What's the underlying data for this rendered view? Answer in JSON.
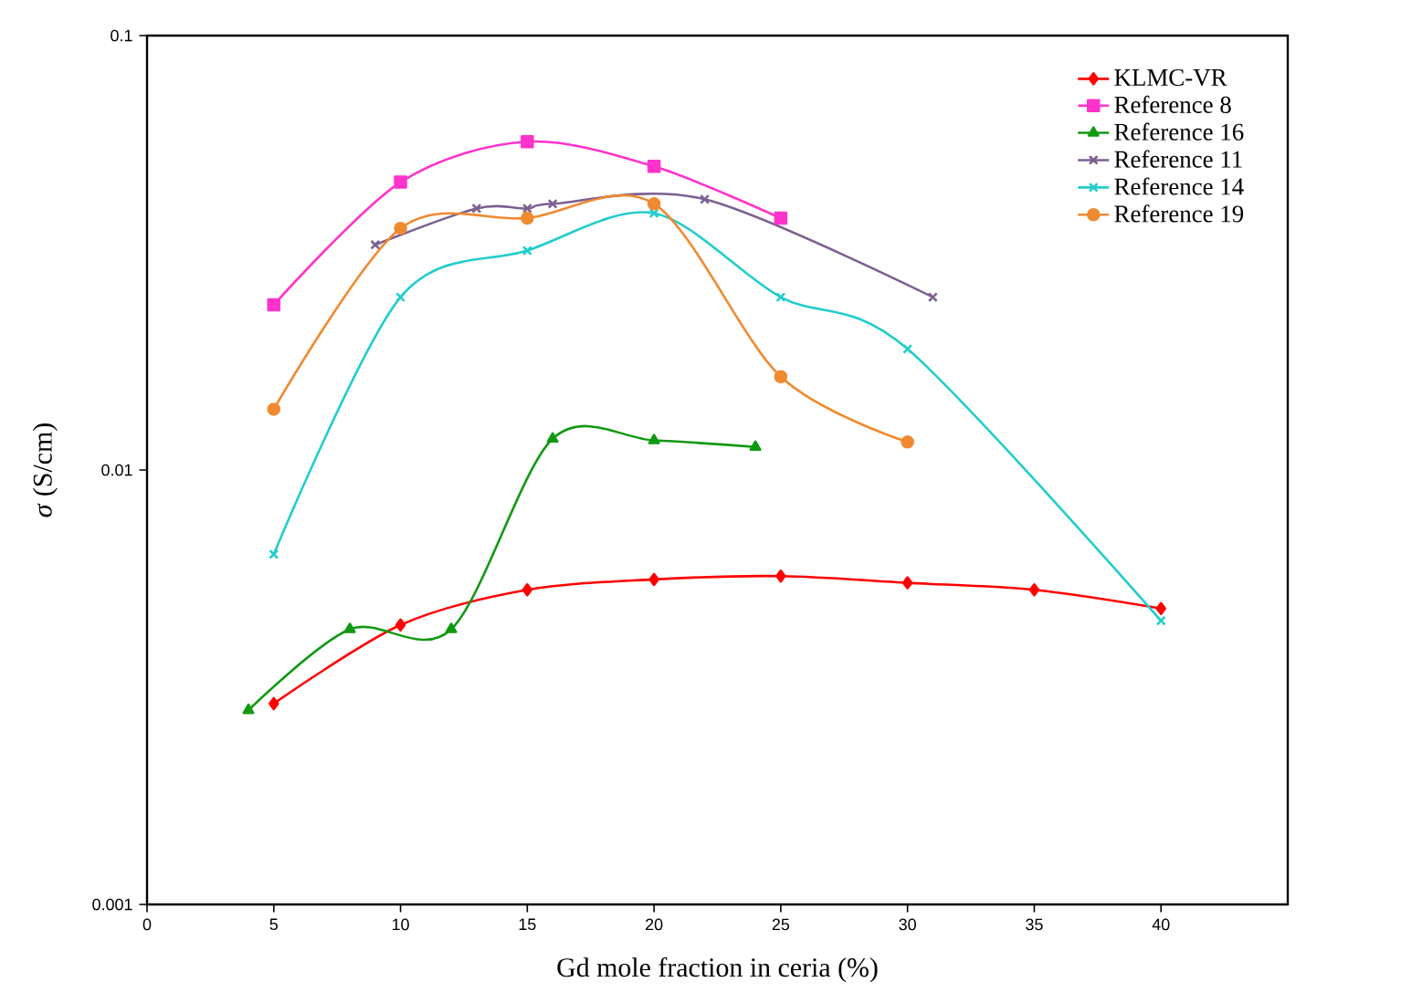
{
  "chart_data": {
    "type": "line",
    "xlabel": "Gd mole fraction in ceria (%)",
    "ylabel": "*σ* (S/cm)",
    "xlim": [
      0,
      45
    ],
    "xticks": [
      0,
      5,
      10,
      15,
      20,
      25,
      30,
      35,
      40
    ],
    "ylim": [
      0.001,
      0.1
    ],
    "yticks": [
      0.001,
      0.01,
      0.1
    ],
    "log": "y",
    "grid": false,
    "legend": "top right",
    "line_style": "solid",
    "series": [
      {
        "name": "KLMC-VR",
        "color": "#ff0000",
        "marker": "diamond",
        "x": [
          5,
          10,
          15,
          20,
          25,
          30,
          35,
          40
        ],
        "values": [
          0.0029,
          0.0044,
          0.0053,
          0.0056,
          0.0057,
          0.0055,
          0.0053,
          0.0048
        ]
      },
      {
        "name": "Reference 8",
        "color": "#ff33cc",
        "marker": "square",
        "x": [
          5,
          10,
          15,
          20,
          25
        ],
        "values": [
          0.024,
          0.046,
          0.057,
          0.05,
          0.038
        ]
      },
      {
        "name": "Reference 16",
        "color": "#119911",
        "marker": "triangle",
        "x": [
          4,
          8,
          12,
          16,
          20,
          24
        ],
        "values": [
          0.0028,
          0.0043,
          0.0043,
          0.0118,
          0.0117,
          0.0113
        ]
      },
      {
        "name": "Reference 11",
        "color": "#7b5f91",
        "marker": "cross",
        "x": [
          9,
          13,
          15,
          16,
          20,
          22,
          31
        ],
        "values": [
          0.033,
          0.04,
          0.04,
          0.041,
          null,
          0.042,
          0.025
        ]
      },
      {
        "name": "Reference 14",
        "color": "#22cccc",
        "marker": "cross",
        "x": [
          5,
          10,
          15,
          20,
          25,
          30,
          40
        ],
        "values": [
          0.0064,
          0.025,
          0.032,
          0.039,
          0.025,
          0.019,
          0.0045
        ]
      },
      {
        "name": "Reference 19",
        "color": "#f08a30",
        "marker": "circle",
        "x": [
          5,
          10,
          15,
          20,
          25,
          30
        ],
        "values": [
          0.0138,
          0.036,
          0.038,
          0.041,
          0.0164,
          0.0116
        ]
      }
    ]
  }
}
